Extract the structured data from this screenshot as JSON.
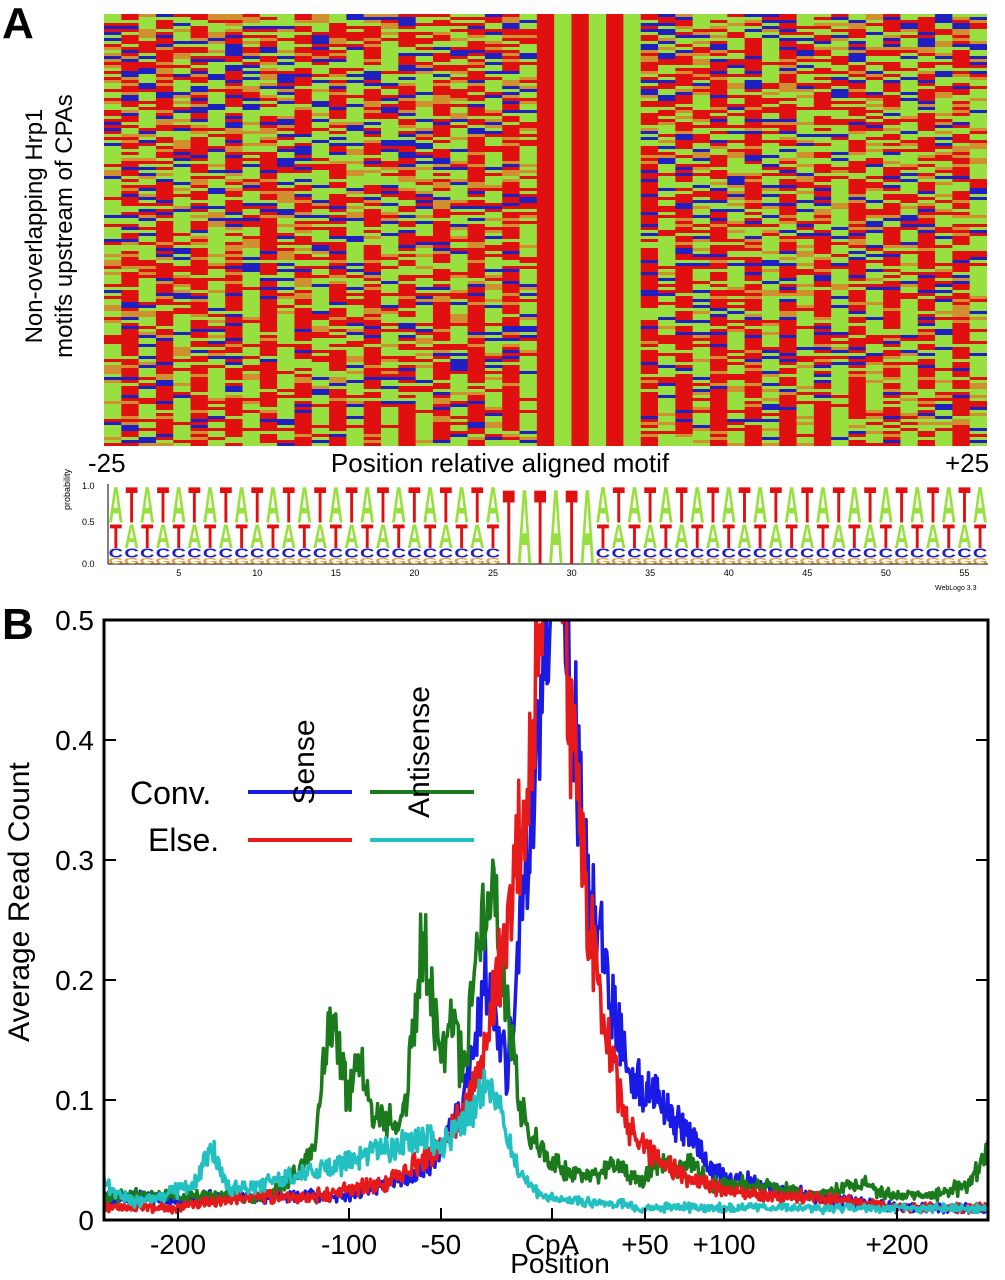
{
  "panelA": {
    "letter": "A",
    "ylabel_line1": "Non-overlapping Hrp1",
    "ylabel_line2": "motifs upstream of CPAs",
    "xlabel": "Position relative aligned motif",
    "x_left": "-25",
    "x_right": "+25",
    "heatmap_colors": {
      "A": "#98e040",
      "T": "#e01010",
      "C": "#2020c0",
      "G": "#d09030"
    },
    "logo": {
      "ylabel": "probability",
      "yticks": [
        "1.0",
        "0.5",
        "0.0"
      ],
      "xticks": [
        "5",
        "10",
        "15",
        "20",
        "25",
        "30",
        "35",
        "40",
        "45",
        "50",
        "55"
      ],
      "credit": "WebLogo 3.3",
      "motif": "TATATA",
      "colors": {
        "A": "#98e040",
        "T": "#e01010",
        "C": "#2020c0",
        "G": "#e0a040"
      }
    }
  },
  "panelB": {
    "letter": "B",
    "legend": {
      "header_sense": "Sense",
      "header_antisense": "Antisense",
      "row1": "Conv.",
      "row2": "Else."
    },
    "chart_data": {
      "type": "line",
      "ylabel": "Average Read Count",
      "xlabel": "Position",
      "ylim": [
        0,
        0.5
      ],
      "yticks": [
        "0",
        "0.1",
        "0.2",
        "0.3",
        "0.4",
        "0.5"
      ],
      "xticks": [
        "-200",
        "-100",
        "-50",
        "CpA",
        "+50",
        "+100",
        "+200"
      ],
      "x_scale": "piecewise",
      "x_range": [
        -250,
        250
      ],
      "series": [
        {
          "name": "Conv. Sense",
          "color": "#1a1ae6",
          "x": [
            -250,
            -220,
            -200,
            -180,
            -150,
            -120,
            -100,
            -80,
            -70,
            -60,
            -50,
            -40,
            -30,
            -20,
            -10,
            -5,
            0,
            5,
            10,
            15,
            20,
            30,
            40,
            50,
            60,
            70,
            80,
            90,
            100,
            120,
            150,
            180,
            200,
            220,
            250
          ],
          "y": [
            0.015,
            0.02,
            0.015,
            0.02,
            0.02,
            0.02,
            0.02,
            0.03,
            0.035,
            0.04,
            0.06,
            0.1,
            0.2,
            0.12,
            0.32,
            0.42,
            0.6,
            0.6,
            0.45,
            0.35,
            0.28,
            0.2,
            0.13,
            0.11,
            0.1,
            0.08,
            0.07,
            0.045,
            0.035,
            0.03,
            0.02,
            0.015,
            0.01,
            0.01,
            0.01
          ]
        },
        {
          "name": "Conv. Antisense",
          "color": "#1b7a1b",
          "x": [
            -250,
            -220,
            -200,
            -180,
            -150,
            -130,
            -120,
            -115,
            -110,
            -105,
            -100,
            -95,
            -90,
            -80,
            -70,
            -65,
            -60,
            -55,
            -50,
            -45,
            -40,
            -35,
            -30,
            -25,
            -20,
            -15,
            -10,
            0,
            10,
            20,
            30,
            40,
            50,
            60,
            70,
            80,
            90,
            100,
            120,
            150,
            180,
            200,
            220,
            240,
            250
          ],
          "y": [
            0.02,
            0.02,
            0.02,
            0.02,
            0.02,
            0.04,
            0.06,
            0.12,
            0.17,
            0.13,
            0.1,
            0.14,
            0.1,
            0.08,
            0.09,
            0.15,
            0.24,
            0.18,
            0.14,
            0.17,
            0.12,
            0.2,
            0.27,
            0.25,
            0.18,
            0.1,
            0.07,
            0.05,
            0.04,
            0.035,
            0.045,
            0.04,
            0.035,
            0.05,
            0.04,
            0.05,
            0.03,
            0.03,
            0.03,
            0.02,
            0.03,
            0.02,
            0.02,
            0.03,
            0.06
          ]
        },
        {
          "name": "Else. Sense",
          "color": "#e61a1a",
          "x": [
            -250,
            -220,
            -200,
            -180,
            -150,
            -120,
            -100,
            -80,
            -60,
            -50,
            -40,
            -30,
            -20,
            -10,
            -5,
            0,
            5,
            10,
            15,
            20,
            30,
            40,
            50,
            60,
            70,
            80,
            90,
            100,
            120,
            150,
            180,
            200,
            220,
            250
          ],
          "y": [
            0.01,
            0.01,
            0.01,
            0.015,
            0.02,
            0.02,
            0.025,
            0.03,
            0.05,
            0.06,
            0.09,
            0.14,
            0.25,
            0.38,
            0.5,
            0.6,
            0.6,
            0.42,
            0.32,
            0.25,
            0.15,
            0.08,
            0.06,
            0.05,
            0.04,
            0.035,
            0.03,
            0.025,
            0.02,
            0.02,
            0.015,
            0.01,
            0.01,
            0.01
          ]
        },
        {
          "name": "Else. Antisense",
          "color": "#22c0c0",
          "x": [
            -250,
            -230,
            -210,
            -190,
            -180,
            -170,
            -150,
            -120,
            -100,
            -80,
            -60,
            -50,
            -40,
            -30,
            -25,
            -20,
            -15,
            -10,
            -5,
            0,
            10,
            20,
            30,
            50,
            80,
            100,
            150,
            200,
            250
          ],
          "y": [
            0.03,
            0.015,
            0.02,
            0.03,
            0.06,
            0.025,
            0.03,
            0.04,
            0.05,
            0.06,
            0.07,
            0.06,
            0.08,
            0.11,
            0.1,
            0.07,
            0.04,
            0.03,
            0.02,
            0.02,
            0.015,
            0.015,
            0.015,
            0.01,
            0.01,
            0.01,
            0.01,
            0.01,
            0.01
          ]
        }
      ]
    }
  }
}
